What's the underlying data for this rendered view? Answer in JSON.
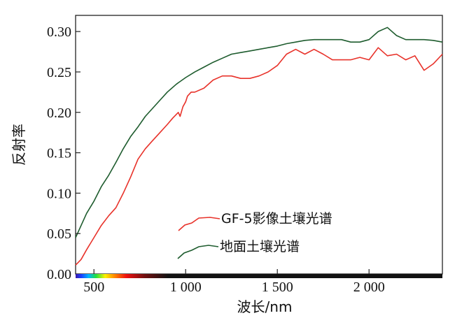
{
  "chart_data": {
    "type": "line",
    "title": "",
    "xlabel": "波长/nm",
    "ylabel": "反射率",
    "xlim": [
      400,
      2400
    ],
    "ylim": [
      0,
      0.32
    ],
    "xticks": [
      {
        "value": 500,
        "label": "500"
      },
      {
        "value": 1000,
        "label": "1 000"
      },
      {
        "value": 1500,
        "label": "1 500"
      },
      {
        "value": 2000,
        "label": "2 000"
      }
    ],
    "yticks": [
      {
        "value": 0.0,
        "label": "0.00"
      },
      {
        "value": 0.05,
        "label": "0.05"
      },
      {
        "value": 0.1,
        "label": "0.10"
      },
      {
        "value": 0.15,
        "label": "0.15"
      },
      {
        "value": 0.2,
        "label": "0.20"
      },
      {
        "value": 0.25,
        "label": "0.25"
      },
      {
        "value": 0.3,
        "label": "0.30"
      }
    ],
    "grid": false,
    "legend_position": "bottom-center",
    "series": [
      {
        "name": "GF-5影像土壤光谱",
        "color": "#e8322a",
        "x": [
          400,
          430,
          460,
          500,
          540,
          580,
          620,
          660,
          700,
          740,
          780,
          820,
          860,
          900,
          930,
          960,
          970,
          985,
          1000,
          1010,
          1030,
          1050,
          1100,
          1150,
          1200,
          1250,
          1300,
          1350,
          1400,
          1450,
          1500,
          1550,
          1600,
          1650,
          1700,
          1750,
          1800,
          1830,
          1900,
          1950,
          2000,
          2050,
          2100,
          2150,
          2200,
          2250,
          2300,
          2350,
          2400
        ],
        "y": [
          0.011,
          0.018,
          0.03,
          0.045,
          0.06,
          0.072,
          0.082,
          0.1,
          0.12,
          0.142,
          0.155,
          0.165,
          0.175,
          0.185,
          0.193,
          0.2,
          0.195,
          0.207,
          0.213,
          0.22,
          0.225,
          0.225,
          0.23,
          0.24,
          0.245,
          0.245,
          0.242,
          0.242,
          0.245,
          0.25,
          0.258,
          0.272,
          0.278,
          0.272,
          0.278,
          0.272,
          0.265,
          0.265,
          0.265,
          0.268,
          0.265,
          0.28,
          0.27,
          0.272,
          0.265,
          0.27,
          0.252,
          0.26,
          0.272
        ]
      },
      {
        "name": "地面土壤光谱",
        "color": "#1e5c2e",
        "x": [
          400,
          430,
          460,
          500,
          540,
          580,
          620,
          660,
          700,
          740,
          780,
          820,
          860,
          900,
          950,
          1000,
          1050,
          1100,
          1150,
          1200,
          1250,
          1300,
          1350,
          1400,
          1450,
          1500,
          1550,
          1600,
          1650,
          1700,
          1750,
          1800,
          1850,
          1900,
          1950,
          2000,
          2050,
          2100,
          2150,
          2200,
          2250,
          2300,
          2350,
          2400
        ],
        "y": [
          0.045,
          0.06,
          0.075,
          0.09,
          0.108,
          0.122,
          0.138,
          0.155,
          0.17,
          0.182,
          0.195,
          0.205,
          0.215,
          0.225,
          0.235,
          0.243,
          0.25,
          0.256,
          0.262,
          0.267,
          0.272,
          0.274,
          0.276,
          0.278,
          0.28,
          0.282,
          0.285,
          0.287,
          0.289,
          0.29,
          0.29,
          0.29,
          0.29,
          0.287,
          0.287,
          0.29,
          0.3,
          0.305,
          0.295,
          0.29,
          0.29,
          0.29,
          0.289,
          0.287
        ]
      }
    ]
  }
}
